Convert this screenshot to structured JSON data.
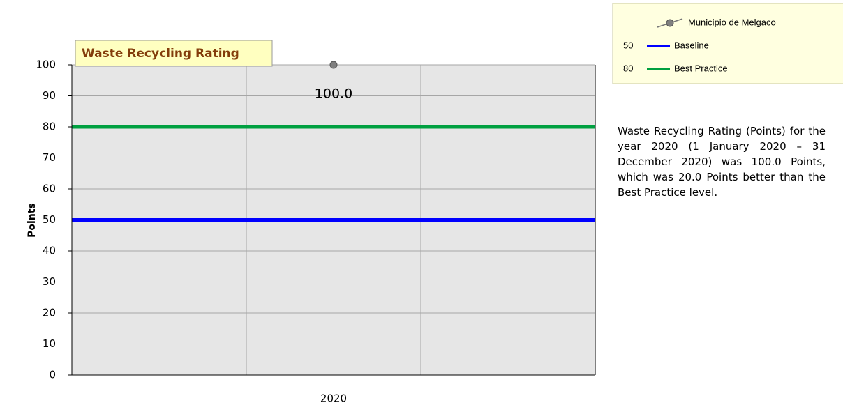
{
  "chart_data": {
    "type": "line",
    "title": "Waste Recycling Rating",
    "y_label": "Points",
    "categories": [
      "2020"
    ],
    "series": [
      {
        "name": "Municipio de Melgaco",
        "color": "#808080",
        "style": "marker",
        "values": [
          100
        ],
        "value_labels": [
          "100.0"
        ]
      },
      {
        "name": "Baseline",
        "color": "#0000ff",
        "style": "hline",
        "values": [
          50
        ]
      },
      {
        "name": "Best Practice",
        "color": "#00a040",
        "style": "hline",
        "values": [
          80
        ]
      }
    ],
    "ylim": [
      0,
      100
    ],
    "yticks": [
      0,
      10,
      20,
      30,
      40,
      50,
      60,
      70,
      80,
      90,
      100
    ],
    "grid": true
  },
  "description": "Waste Recycling Rating (Points) for the year 2020 (1 January 2020 – 31 December 2020) was 100.0 Points, which was 20.0 Points better than the Best Practice level."
}
